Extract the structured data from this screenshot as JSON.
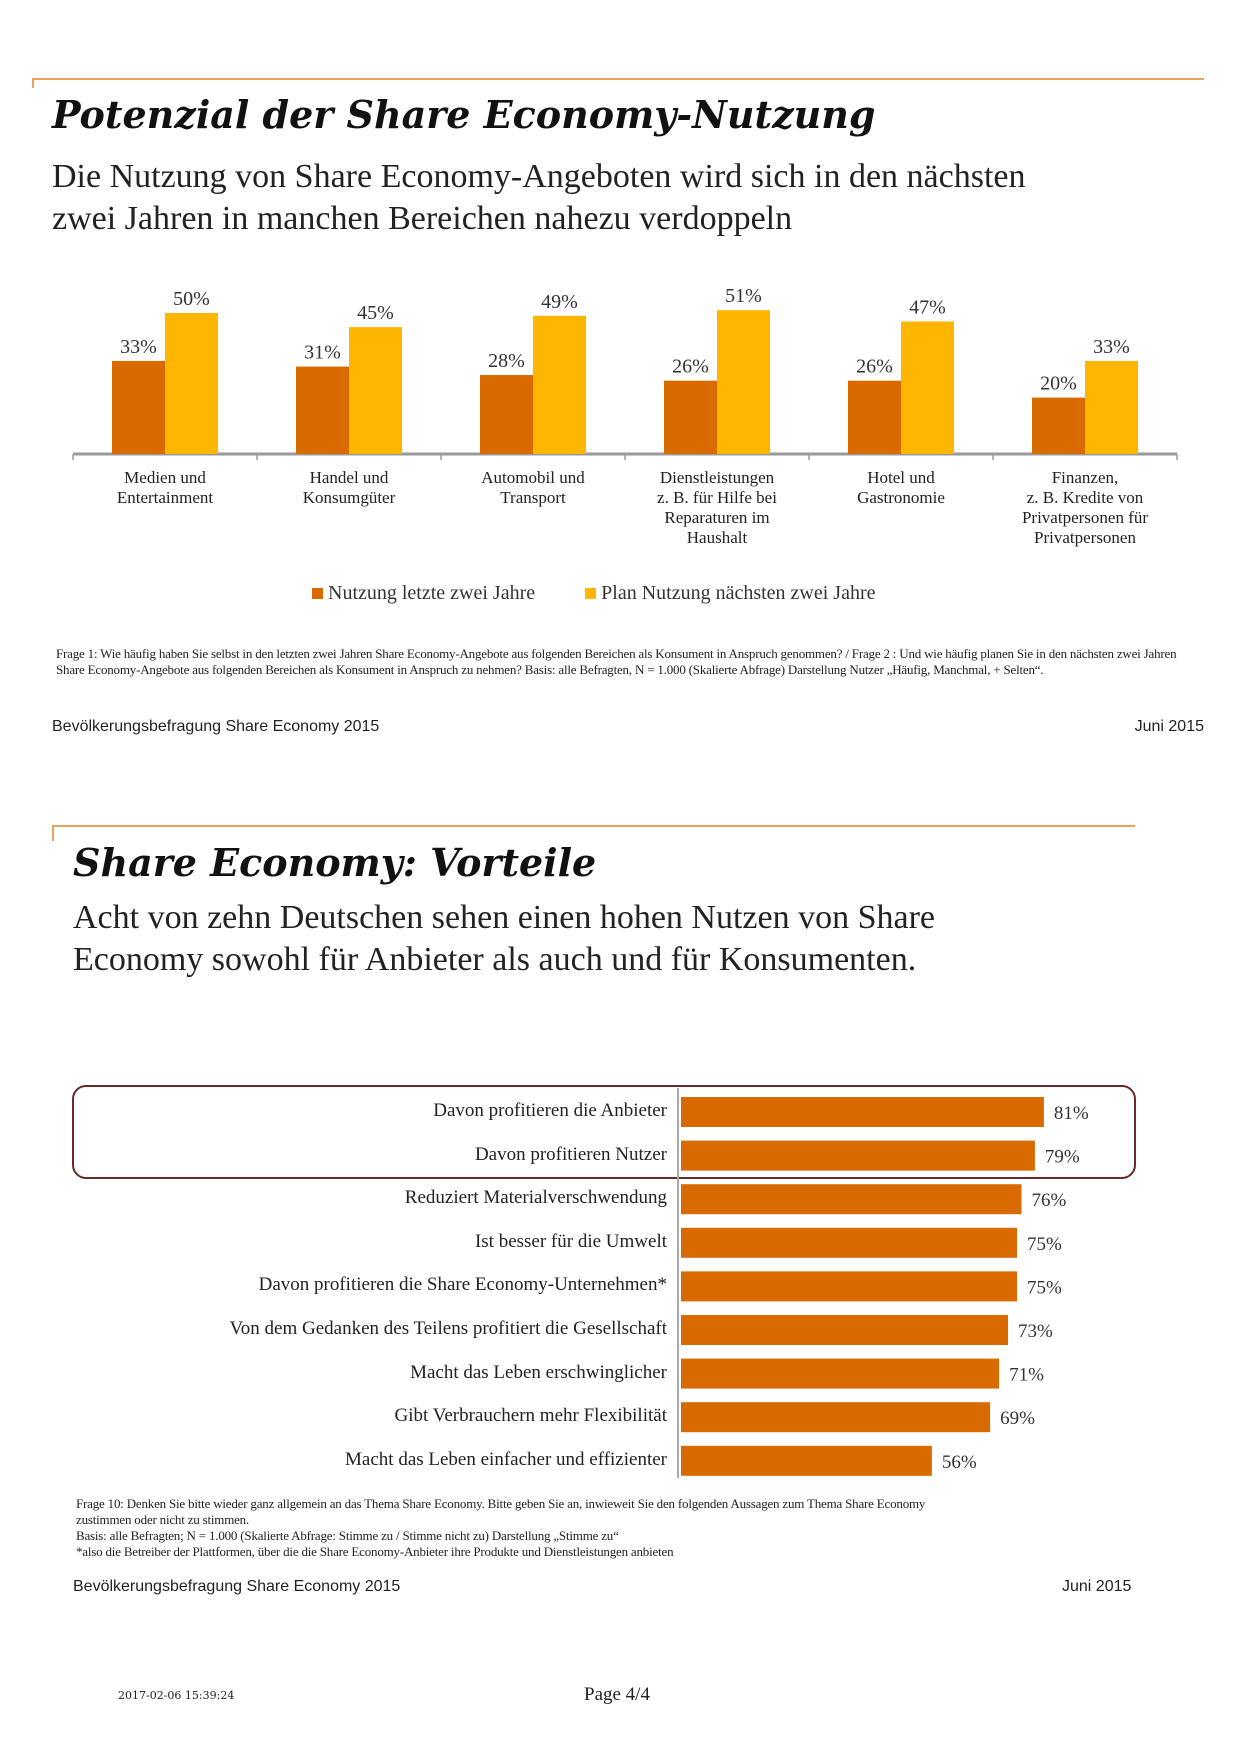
{
  "colors": {
    "series1": "#D86A00",
    "series2": "#FFB600",
    "accent_line": "#E9A25F",
    "box_border": "#6B2A2A"
  },
  "slide1": {
    "title": "Potenzial der Share Economy-Nutzung",
    "subtitle_lines": [
      "Die Nutzung von Share Economy-Angeboten wird sich in den nächsten",
      "zwei Jahren in manchen Bereichen nahezu verdoppeln"
    ],
    "note": "Frage 1: Wie häufig haben Sie selbst in den letzten zwei Jahren Share Economy-Angebote aus folgenden Bereichen als Konsument in Anspruch genommen? / Frage 2 : Und wie häufig planen Sie in den nächsten zwei Jahren Share Economy-Angebote aus folgenden Bereichen als Konsument in Anspruch zu nehmen? Basis: alle Befragten, N = 1.000 (Skalierte Abfrage) Darstellung Nutzer „Häufig, Manchmal, + Selten“.",
    "footer_left": "Bevölkerungsbefragung Share Economy 2015",
    "footer_right": "Juni 2015"
  },
  "slide2": {
    "title": "Share Economy: Vorteile",
    "subtitle_lines": [
      "Acht von zehn Deutschen sehen einen hohen Nutzen von Share",
      "Economy sowohl für Anbieter als auch und für Konsumenten."
    ],
    "note_lines": [
      "Frage 10: Denken Sie bitte wieder ganz allgemein an das Thema Share Economy. Bitte geben Sie an, inwieweit Sie den folgenden Aussagen zum Thema Share Economy",
      "zustimmen oder nicht zu stimmen.",
      "Basis: alle Befragten; N = 1.000  (Skalierte Abfrage: Stimme zu / Stimme nicht zu) Darstellung „Stimme zu“",
      "*also die Betreiber der Plattformen, über die die Share Economy-Anbieter ihre Produkte und Dienstleistungen anbieten"
    ],
    "footer_left": "Bevölkerungsbefragung Share Economy 2015",
    "footer_right": "Juni 2015"
  },
  "page_footer": {
    "timestamp": "2017-02-06 15:39:24",
    "page": "Page 4/4"
  },
  "chart_data": [
    {
      "type": "bar",
      "categories": [
        "Medien und Entertainment",
        "Handel und Konsumgüter",
        "Automobil und Transport",
        "Dienstleistungen z. B. für Hilfe bei Reparaturen im Haushalt",
        "Hotel und Gastronomie",
        "Finanzen, z. B. Kredite von Privatpersonen für Privatpersonen"
      ],
      "category_lines": [
        [
          "Medien und",
          "Entertainment"
        ],
        [
          "Handel und",
          "Konsumgüter"
        ],
        [
          "Automobil und",
          "Transport"
        ],
        [
          "Dienstleistungen",
          "z. B. für Hilfe bei",
          "Reparaturen im",
          "Haushalt"
        ],
        [
          "Hotel und",
          "Gastronomie"
        ],
        [
          "Finanzen,",
          "z. B. Kredite von",
          "Privatpersonen für",
          "Privatpersonen"
        ]
      ],
      "series": [
        {
          "name": "Nutzung letzte zwei Jahre",
          "values": [
            33,
            31,
            28,
            26,
            26,
            20
          ],
          "labels": [
            "33%",
            "31%",
            "28%",
            "26%",
            "26%",
            "20%"
          ]
        },
        {
          "name": "Plan Nutzung nächsten zwei Jahre",
          "values": [
            50,
            45,
            49,
            51,
            47,
            33
          ],
          "labels": [
            "50%",
            "45%",
            "49%",
            "51%",
            "47%",
            "33%"
          ]
        }
      ],
      "ylim": [
        0,
        55
      ],
      "legend": "bottom",
      "grid": false
    },
    {
      "type": "bar",
      "orientation": "horizontal",
      "categories": [
        "Davon profitieren die Anbieter",
        "Davon profitieren Nutzer",
        "Reduziert Materialverschwendung",
        "Ist besser für die Umwelt",
        "Davon profitieren die Share Economy-Unternehmen*",
        "Von dem Gedanken des Teilens profitiert die Gesellschaft",
        "Macht das Leben erschwinglicher",
        "Gibt Verbrauchern mehr Flexibilität",
        "Macht das Leben einfacher und effizienter"
      ],
      "values": [
        81,
        79,
        76,
        75,
        75,
        73,
        71,
        69,
        56
      ],
      "labels": [
        "81%",
        "79%",
        "76%",
        "75%",
        "75%",
        "73%",
        "71%",
        "69%",
        "56%"
      ],
      "highlighted": [
        0,
        1
      ],
      "xlim": [
        0,
        100
      ],
      "grid": false
    }
  ]
}
